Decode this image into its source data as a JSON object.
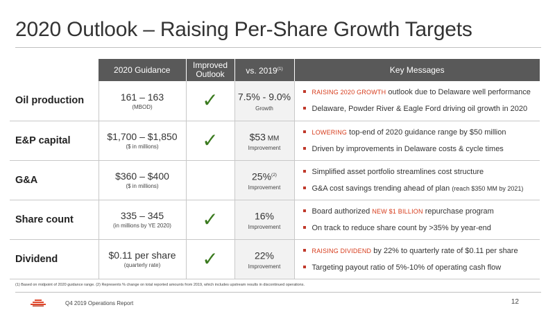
{
  "title": "2020 Outlook – Raising Per-Share Growth Targets",
  "headers": {
    "guidance": "2020 Guidance",
    "improved": "Improved Outlook",
    "vs": "vs. 2019",
    "vs_sup": "(1)",
    "messages": "Key Messages"
  },
  "rows": [
    {
      "label": "Oil production",
      "guidance_main": "161 – 163",
      "guidance_sub": "(MBOD)",
      "improved": true,
      "vs_main": "7.5% - 9.0%",
      "vs_unit": "",
      "vs_sup": "",
      "vs_sub": "Growth",
      "messages": [
        {
          "highlight": "Raising 2020 growth",
          "text": " outlook due to Delaware well performance",
          "small": ""
        },
        {
          "highlight": "",
          "text": "Delaware, Powder River & Eagle Ford driving oil growth in 2020",
          "small": ""
        }
      ]
    },
    {
      "label": "E&P capital",
      "guidance_main": "$1,700 – $1,850",
      "guidance_sub": "($ in millions)",
      "improved": true,
      "vs_main": "$53",
      "vs_unit": " MM",
      "vs_sup": "",
      "vs_sub": "Improvement",
      "messages": [
        {
          "highlight": "Lowering",
          "text": " top-end of 2020 guidance range by $50 million",
          "small": ""
        },
        {
          "highlight": "",
          "text": "Driven by improvements in Delaware costs & cycle times",
          "small": ""
        }
      ]
    },
    {
      "label": "G&A",
      "guidance_main": "$360 – $400",
      "guidance_sub": "($ in millions)",
      "improved": false,
      "vs_main": "25%",
      "vs_unit": "",
      "vs_sup": "(2)",
      "vs_sub": "Improvement",
      "messages": [
        {
          "highlight": "",
          "text": "Simplified asset portfolio streamlines cost structure",
          "small": ""
        },
        {
          "highlight": "",
          "text": "G&A cost savings trending ahead of plan ",
          "small": "(reach $350 MM by 2021)"
        }
      ]
    },
    {
      "label": "Share count",
      "guidance_main": "335 – 345",
      "guidance_sub": "(in millions by YE 2020)",
      "improved": true,
      "vs_main": "16%",
      "vs_unit": "",
      "vs_sup": "",
      "vs_sub": "Improvement",
      "messages": [
        {
          "highlight": "",
          "text": "Board authorized ",
          "small": "",
          "mid_highlight": "New $1 billion",
          "after": " repurchase program"
        },
        {
          "highlight": "",
          "text": "On track to reduce share count by >35% by year-end",
          "small": ""
        }
      ]
    },
    {
      "label": "Dividend",
      "guidance_main": "$0.11 per share",
      "guidance_sub": "(quarterly rate)",
      "improved": true,
      "vs_main": "22%",
      "vs_unit": "",
      "vs_sup": "",
      "vs_sub": "Improvement",
      "messages": [
        {
          "highlight": "Raising dividend",
          "text": " by 22% to quarterly rate of $0.11 per share",
          "small": ""
        },
        {
          "highlight": "",
          "text": "Targeting payout ratio of 5%-10% of operating cash flow",
          "small": ""
        }
      ]
    }
  ],
  "footnote": "(1) Based on midpoint of 2020 guidance range. (2) Represents % change on total reported amounts from 2019, which includes upstream results in discontinued operations.",
  "footer": {
    "report_name": "Q4 2019 Operations Report",
    "page_number": "12"
  },
  "colors": {
    "accent": "#d63a1a",
    "header_bg": "#595959",
    "check": "#3a7a1e",
    "vs_bg": "#f2f2f2"
  },
  "icons": {
    "check": "check-icon",
    "bullet": "square-bullet-icon",
    "logo": "company-logo-icon"
  }
}
